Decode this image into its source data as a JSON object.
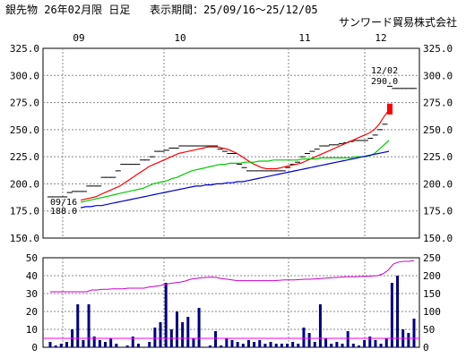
{
  "header": {
    "title": "銀先物 26年02月限 日足",
    "period_label": "表示期間：25/09/16～25/12/05",
    "company": "サンワード貿易株式会社"
  },
  "chart_data": [
    {
      "type": "candlestick",
      "x_month_labels": [
        "09",
        "10",
        "11",
        "12"
      ],
      "ylim": [
        150,
        325
      ],
      "y_ticks": [
        "325.0",
        "300.0",
        "275.0",
        "250.0",
        "225.0",
        "200.0",
        "175.0",
        "150.0"
      ],
      "grid": true,
      "annotations": [
        {
          "date": "09/16",
          "value": "188.0"
        },
        {
          "date": "12/02",
          "value": "290.0"
        }
      ],
      "close_levels": [
        188,
        188,
        188,
        188,
        192,
        193,
        193,
        193,
        198,
        198,
        198,
        206,
        206,
        206,
        212,
        218,
        218,
        218,
        218,
        222,
        222,
        225,
        230,
        230,
        231,
        233,
        233,
        235,
        235,
        235,
        235,
        235,
        235,
        235,
        235,
        232,
        230,
        228,
        228,
        218,
        215,
        212,
        212,
        212,
        212,
        212,
        212,
        212,
        212,
        215,
        218,
        220,
        225,
        228,
        230,
        232,
        235,
        235,
        236,
        236,
        237,
        238,
        239,
        240,
        240,
        240,
        242,
        245,
        250,
        255,
        290,
        288,
        288,
        288,
        288,
        288
      ],
      "highlight_candle": {
        "index": 70,
        "low": 264,
        "high": 274,
        "color": "#ff0000"
      },
      "moving_averages": [
        {
          "color": "#ff0000",
          "values": [
            185,
            186,
            187,
            188,
            190,
            192,
            194,
            196,
            198,
            201,
            204,
            207,
            210,
            213,
            216,
            218,
            220,
            222,
            224,
            226,
            228,
            229,
            230,
            231,
            232,
            233,
            234,
            234,
            234,
            233,
            232,
            230,
            228,
            225,
            222,
            219,
            217,
            215,
            214,
            214,
            214,
            215,
            216,
            217,
            218,
            219,
            221,
            223,
            225,
            227,
            229,
            231,
            233,
            235,
            237,
            239,
            241,
            243,
            245,
            247,
            250,
            255,
            262,
            268
          ]
        },
        {
          "color": "#00cc00",
          "values": [
            183,
            184,
            185,
            186,
            187,
            188,
            189,
            190,
            191,
            192,
            193,
            194,
            195,
            196,
            198,
            200,
            201,
            202,
            203,
            205,
            206,
            208,
            210,
            212,
            213,
            214,
            215,
            216,
            217,
            218,
            218,
            219,
            219,
            219,
            220,
            220,
            220,
            221,
            221,
            221,
            222,
            222,
            222,
            222,
            222,
            222,
            223,
            223,
            223,
            223,
            224,
            224,
            224,
            224,
            224,
            224,
            224,
            225,
            225,
            225,
            226,
            228,
            232,
            236,
            240
          ]
        },
        {
          "color": "#0000cc",
          "values": [
            178,
            179,
            179,
            180,
            180,
            181,
            182,
            183,
            184,
            185,
            186,
            187,
            188,
            189,
            190,
            191,
            192,
            193,
            194,
            195,
            196,
            197,
            198,
            198,
            199,
            199,
            200,
            200,
            201,
            201,
            202,
            202,
            203,
            204,
            205,
            206,
            207,
            208,
            209,
            210,
            211,
            212,
            213,
            214,
            215,
            216,
            217,
            218,
            219,
            220,
            221,
            222,
            223,
            224,
            225,
            226,
            227,
            228,
            229,
            230
          ]
        }
      ]
    },
    {
      "type": "bar",
      "ylim_left": [
        0,
        50
      ],
      "ylim_right": [
        0,
        250
      ],
      "y_ticks_left": [
        "50",
        "40",
        "30",
        "20",
        "10",
        "0"
      ],
      "y_ticks_right": [
        "250",
        "200",
        "150",
        "100",
        "50",
        "0"
      ],
      "grid": true,
      "volume": [
        3,
        1,
        2,
        3,
        10,
        24,
        4,
        24,
        6,
        4,
        3,
        5,
        2,
        0,
        1,
        6,
        2,
        0,
        3,
        11,
        14,
        36,
        10,
        20,
        14,
        17,
        5,
        22,
        0,
        1,
        9,
        1,
        5,
        4,
        3,
        2,
        4,
        3,
        4,
        2,
        3,
        2,
        2,
        2,
        3,
        2,
        11,
        8,
        3,
        24,
        5,
        2,
        3,
        2,
        9,
        2,
        1,
        4,
        6,
        4,
        2,
        5,
        36,
        40,
        10,
        8,
        16
      ],
      "open_interest": [
        155,
        155,
        155,
        155,
        155,
        155,
        155,
        155,
        160,
        160,
        162,
        162,
        163,
        163,
        163,
        165,
        165,
        165,
        165,
        168,
        170,
        172,
        175,
        178,
        180,
        182,
        185,
        190,
        192,
        194,
        195,
        196,
        195,
        192,
        190,
        188,
        186,
        186,
        186,
        186,
        186,
        186,
        186,
        186,
        187,
        188,
        188,
        188,
        189,
        190,
        190,
        191,
        192,
        193,
        194,
        195,
        196,
        197,
        197,
        197,
        198,
        198,
        199,
        200,
        205,
        215,
        232,
        238,
        240,
        240,
        242
      ]
    }
  ]
}
